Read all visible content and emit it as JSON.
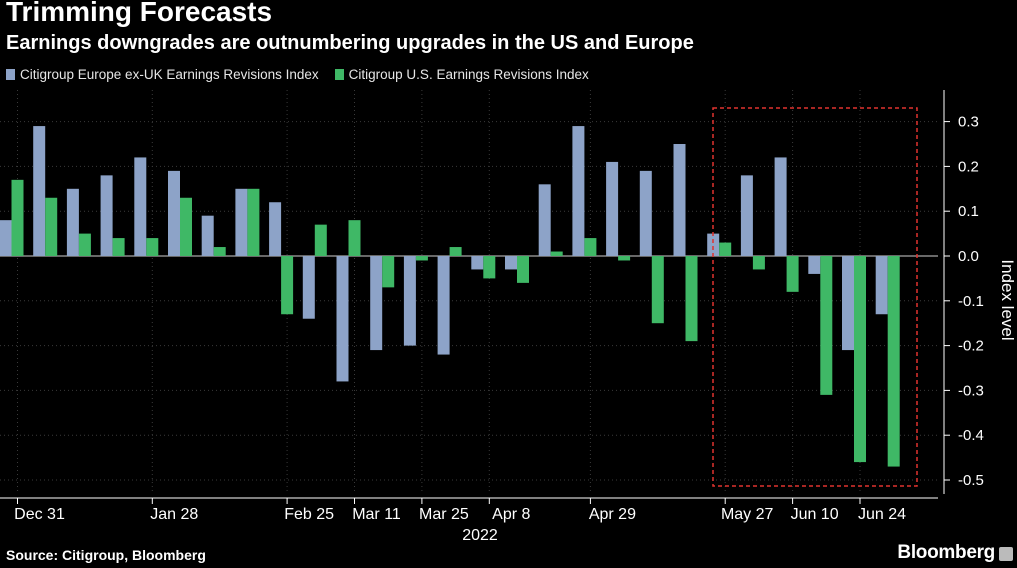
{
  "title": "Trimming Forecasts",
  "subtitle": "Earnings downgrades are outnumbering upgrades in the US and Europe",
  "source": "Source: Citigroup, Bloomberg",
  "brand": "Bloomberg",
  "colors": {
    "europe": "#8da3c8",
    "us": "#3fb866",
    "highlight": "#e0332f",
    "axis": "#ffffff",
    "grid": "#3a3a3a"
  },
  "chart_data": {
    "type": "bar",
    "ylabel": "Index level",
    "xlabel": "",
    "year_label": "2022",
    "ylim": [
      -0.52,
      0.36
    ],
    "yticks": [
      0.3,
      0.2,
      0.1,
      0.0,
      -0.1,
      -0.2,
      -0.3,
      -0.4,
      -0.5
    ],
    "ytick_labels": [
      "0.3",
      "0.2",
      "0.1",
      "0.0",
      "-0.1",
      "-0.2",
      "-0.3",
      "-0.4",
      "-0.5"
    ],
    "grid": true,
    "legend_position": "top-left",
    "x_tick_labels": [
      {
        "label": "Dec 31",
        "period": 0
      },
      {
        "label": "Jan 28",
        "period": 4
      },
      {
        "label": "Feb 25",
        "period": 8
      },
      {
        "label": "Mar 11",
        "period": 10
      },
      {
        "label": "Mar 25",
        "period": 12
      },
      {
        "label": "Apr 8",
        "period": 14
      },
      {
        "label": "Apr 29",
        "period": 17
      },
      {
        "label": "May 27",
        "period": 21
      },
      {
        "label": "Jun 10",
        "period": 23
      },
      {
        "label": "Jun 24",
        "period": 25
      }
    ],
    "highlight_periods": [
      21,
      26
    ],
    "series": [
      {
        "name": "Citigroup Europe ex-UK Earnings Revisions Index",
        "values": [
          0.08,
          0.29,
          0.15,
          0.18,
          0.22,
          0.19,
          0.09,
          0.15,
          0.12,
          -0.14,
          -0.28,
          -0.21,
          -0.2,
          -0.22,
          -0.03,
          -0.03,
          0.16,
          0.29,
          0.21,
          0.19,
          0.25,
          0.05,
          0.18,
          0.22,
          -0.04,
          -0.21,
          -0.13
        ]
      },
      {
        "name": "Citigroup U.S. Earnings Revisions Index",
        "values": [
          0.17,
          0.13,
          0.05,
          0.04,
          0.04,
          0.13,
          0.02,
          0.15,
          -0.13,
          0.07,
          0.08,
          -0.07,
          -0.01,
          0.02,
          -0.05,
          -0.06,
          0.01,
          0.04,
          -0.01,
          -0.15,
          -0.19,
          0.03,
          -0.03,
          -0.08,
          -0.31,
          -0.46,
          -0.47
        ]
      }
    ]
  }
}
